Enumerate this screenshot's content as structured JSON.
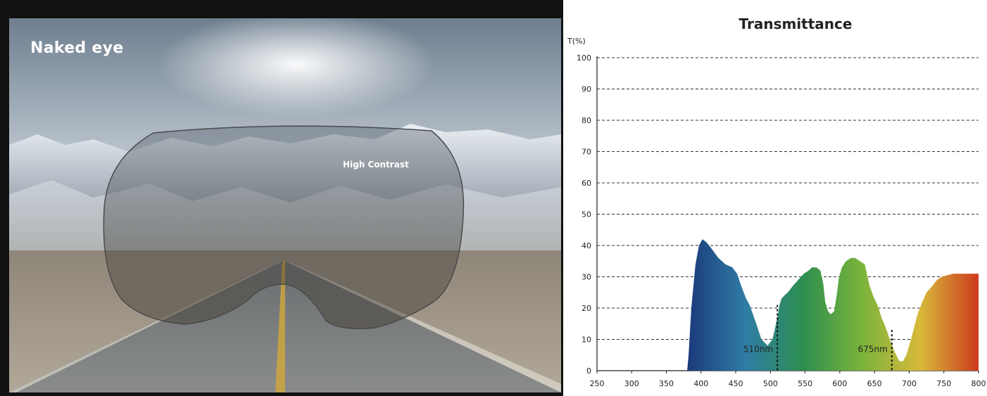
{
  "photo": {
    "label": "Naked eye",
    "lens_label": "High Contrast"
  },
  "chart_data": {
    "type": "area",
    "title": "Transmittance",
    "ylabel": "T(%)",
    "xlabel": "",
    "x_ticks": [
      250,
      300,
      350,
      400,
      450,
      500,
      550,
      600,
      650,
      700,
      750,
      800
    ],
    "y_ticks": [
      0,
      10,
      20,
      30,
      40,
      50,
      60,
      70,
      80,
      90,
      100
    ],
    "xlim": [
      250,
      800
    ],
    "ylim": [
      0,
      100
    ],
    "grid": "horizontal dashed",
    "gradient_colors": [
      "#1b3a7a",
      "#2f7ca5",
      "#2d8f4e",
      "#7ab43c",
      "#d8b93a",
      "#cc3a1e"
    ],
    "curve": {
      "x": [
        380,
        382,
        386,
        392,
        397,
        402,
        408,
        415,
        425,
        435,
        445,
        452,
        458,
        465,
        470,
        478,
        487,
        496,
        503,
        507,
        511,
        513,
        516,
        520,
        525,
        532,
        540,
        548,
        555,
        560,
        566,
        572,
        576,
        579,
        583,
        587,
        592,
        596,
        599,
        603,
        609,
        616,
        622,
        629,
        636,
        643,
        648,
        652,
        656,
        660,
        666,
        672,
        679,
        686,
        691,
        696,
        700,
        705,
        712,
        719,
        725,
        733,
        740,
        747,
        755,
        764,
        774,
        784,
        795,
        800
      ],
      "y": [
        0,
        5,
        20,
        34,
        40,
        42,
        41,
        39,
        36,
        34,
        33,
        31,
        27,
        23,
        21,
        16,
        10,
        8,
        10,
        14,
        18,
        21,
        23,
        24,
        25,
        27,
        29,
        31,
        32,
        33,
        33,
        32,
        28,
        22,
        19,
        18,
        19,
        25,
        30,
        33,
        35,
        36,
        36,
        35,
        34,
        27,
        24,
        22,
        20,
        17,
        14,
        10,
        6,
        3,
        3,
        5,
        8,
        12,
        18,
        22,
        25,
        27,
        29,
        30,
        30.5,
        31,
        31,
        31,
        31,
        31
      ]
    },
    "markers": [
      {
        "x": 510,
        "label": "510nm",
        "y_top": 21
      },
      {
        "x": 675,
        "label": "675nm",
        "y_top": 13
      }
    ]
  }
}
